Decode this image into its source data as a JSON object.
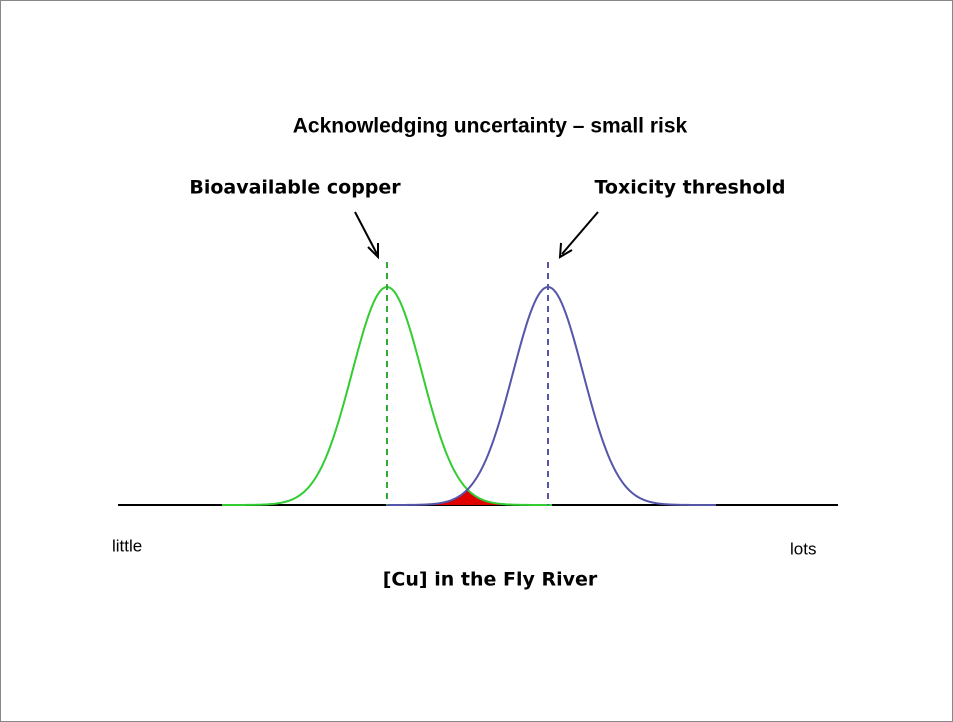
{
  "title": "Acknowledging uncertainty – small risk",
  "annotations": {
    "left": "Bioavailable copper",
    "right": "Toxicity threshold"
  },
  "axis": {
    "start_label": "little",
    "end_label": "lots",
    "label": "[Cu] in the Fly River"
  }
}
